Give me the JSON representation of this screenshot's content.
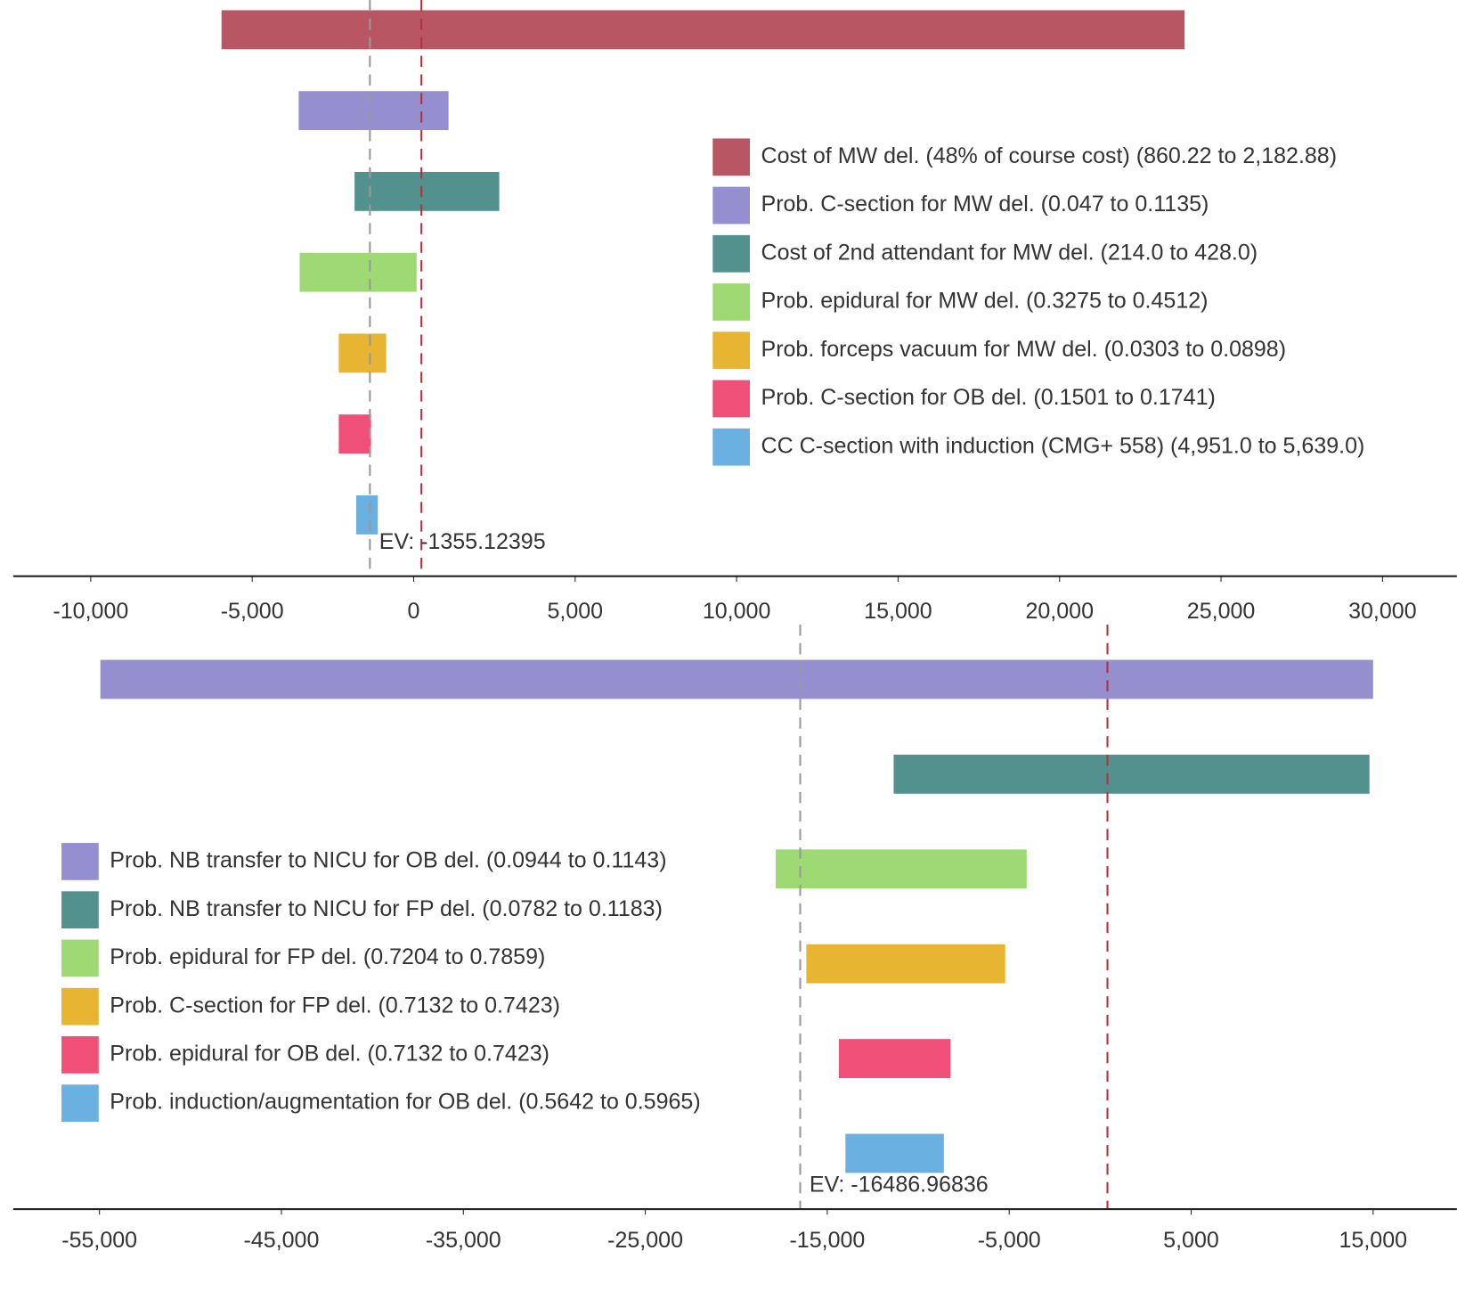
{
  "chart_data": [
    {
      "type": "tornado",
      "series": [
        {
          "name": "Cost of MW del. (48% of course cost) (860.22 to 2,182.88)",
          "color": "#b95663",
          "values": [
            -5950,
            23870
          ]
        },
        {
          "name": "Prob. C-section for MW del. (0.047 to 0.1135)",
          "color": "#958ecf",
          "values": [
            -3560,
            1080
          ]
        },
        {
          "name": "Cost of 2nd attendant for MW del. (214.0 to 428.0)",
          "color": "#52918e",
          "values": [
            -1830,
            2650
          ]
        },
        {
          "name": "Prob. epidural for MW del. (0.3275 to 0.4512)",
          "color": "#9ed974",
          "values": [
            -3530,
            90
          ]
        },
        {
          "name": "Prob. forceps vacuum for MW del. (0.0303 to 0.0898)",
          "color": "#e8b532",
          "values": [
            -2320,
            -850
          ]
        },
        {
          "name": "Prob. C-section for OB del. (0.1501 to 0.1741)",
          "color": "#f05078",
          "values": [
            -2320,
            -1320
          ]
        },
        {
          "name": "CC C-section with induction (CMG+ 558) (4,951.0 to 5,639.0)",
          "color": "#6ab1e1",
          "values": [
            -1780,
            -1110
          ]
        }
      ],
      "ev": -1355.12395,
      "ev_label": "EV: -1355.12395",
      "reference": 240,
      "xlim": [
        -12400,
        32300
      ],
      "xticks": [
        {
          "value": -10000,
          "label": "-10,000"
        },
        {
          "value": -5000,
          "label": "-5,000"
        },
        0,
        {
          "value": 5000,
          "label": "5,000"
        },
        {
          "value": 10000,
          "label": "10,000"
        },
        {
          "value": 15000,
          "label": "15,000"
        },
        {
          "value": 20000,
          "label": "20,000"
        },
        {
          "value": 25000,
          "label": "25,000"
        },
        {
          "value": 30000,
          "label": "30,000"
        }
      ]
    },
    {
      "type": "tornado",
      "series": [
        {
          "name": "Prob. NB transfer to NICU for OB del. (0.0944 to 0.1143)",
          "color": "#958ecf",
          "values": [
            -54950,
            15000
          ]
        },
        {
          "name": "Prob. NB transfer to NICU for FP del. (0.0782 to 0.1183)",
          "color": "#52918e",
          "values": [
            -11350,
            14800
          ]
        },
        {
          "name": "Prob. epidural for FP del. (0.7204 to 0.7859)",
          "color": "#9ed974",
          "values": [
            -17830,
            -4040
          ]
        },
        {
          "name": "Prob. C-section for FP del. (0.7132 to 0.7423)",
          "color": "#e8b532",
          "values": [
            -16150,
            -5220
          ]
        },
        {
          "name": "Prob. epidural for OB del. (0.7132 to 0.7423)",
          "color": "#f05078",
          "values": [
            -14360,
            -8230
          ]
        },
        {
          "name": "Prob. induction/augmentation for OB del. (0.5642 to 0.5965)",
          "color": "#6ab1e1",
          "values": [
            -14000,
            -8590
          ]
        }
      ],
      "ev": -16486.96836,
      "ev_label": "EV: -16486.96836",
      "reference": 400,
      "xlim": [
        -59740,
        19600
      ],
      "xticks": [
        {
          "value": -55000,
          "label": "-55,000"
        },
        {
          "value": -45000,
          "label": "-45,000"
        },
        {
          "value": -35000,
          "label": "-35,000"
        },
        {
          "value": -25000,
          "label": "-25,000"
        },
        {
          "value": -15000,
          "label": "-15,000"
        },
        {
          "value": -5000,
          "label": "-5,000"
        },
        {
          "value": 5000,
          "label": "5,000"
        },
        {
          "value": 15000,
          "label": "15,000"
        }
      ]
    }
  ]
}
